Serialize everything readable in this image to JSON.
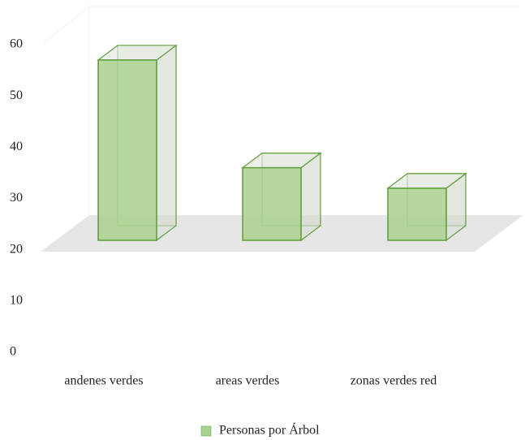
{
  "chart_data": {
    "type": "bar3d",
    "categories": [
      "andenes verdes",
      "areas verdes",
      "zonas verdes red"
    ],
    "series": [
      {
        "name": "Personas por Árbol",
        "color": "#a9d18e",
        "values": [
          57,
          36,
          32
        ]
      }
    ],
    "ylim": [
      0,
      60
    ],
    "yticks": [
      0,
      10,
      20,
      30,
      40,
      50,
      60
    ],
    "legend": "bottom"
  }
}
